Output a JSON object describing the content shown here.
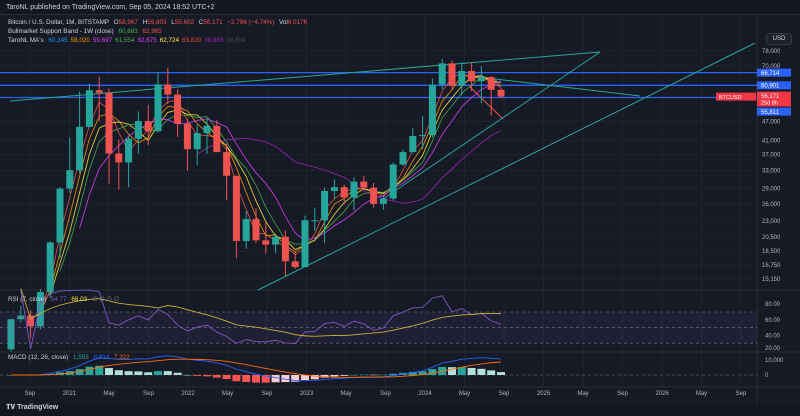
{
  "header": {
    "publisher": "TaroNL published on TradingView.com, Sep 05, 2024 18:52 UTC+2"
  },
  "legend": {
    "symbol": "Bitcoin / U.S. Dollar, 1M, BITSTAMP",
    "o_label": "O",
    "o": "58,967",
    "h_label": "H",
    "h": "59,803",
    "l_label": "L",
    "l": "55,602",
    "c_label": "C",
    "c": "56,171",
    "change": "−2,796 (−4.74%)",
    "vol_label": "Vol",
    "vol": "8.017K",
    "band_title": "Bullmarket Support Band - 1W (close)",
    "band_v1": "60,683",
    "band_v2": "62,965",
    "ma_title": "TaroNL MA's",
    "ma_values": [
      {
        "v": "60,145",
        "color": "#2196f3"
      },
      {
        "v": "58,020",
        "color": "#ff9800"
      },
      {
        "v": "59,697",
        "color": "#e040fb"
      },
      {
        "v": "61,554",
        "color": "#4caf50"
      },
      {
        "v": "62,675",
        "color": "#e040fb"
      },
      {
        "v": "62,724",
        "color": "#ffeb3b"
      },
      {
        "v": "63,820",
        "color": "#f44336"
      },
      {
        "v": "38,883",
        "color": "#9c27b0"
      },
      {
        "v": "38,864",
        "color": "#434651"
      }
    ]
  },
  "currency_button": "USD",
  "price_axis": {
    "ticks": [
      78000,
      70000,
      47000,
      41000,
      37000,
      33000,
      29000,
      26000,
      23000,
      20500,
      18500,
      16750,
      15150
    ],
    "labels": [
      "78,000",
      "70,000",
      "47,000",
      "41,000",
      "37,000",
      "33,000",
      "29,000",
      "26,000",
      "23,000",
      "20,500",
      "18,500",
      "16,750",
      "15,150"
    ]
  },
  "levels": [
    {
      "price": 66714,
      "label": "66,714"
    },
    {
      "price": 60901,
      "label": "60,901"
    },
    {
      "price": 55811,
      "label": "55,811"
    }
  ],
  "last_price": {
    "symbol": "BTCUSD",
    "price": 56171,
    "label": "56,171",
    "countdown": "25d 8h"
  },
  "time_axis": [
    "Sep",
    "2021",
    "May",
    "Sep",
    "2022",
    "May",
    "Sep",
    "2023",
    "May",
    "Sep",
    "2024",
    "May",
    "Sep",
    "2025",
    "May",
    "Sep",
    "2026",
    "May",
    "Sep"
  ],
  "candles": [
    [
      9140,
      11400,
      9000,
      11350
    ],
    [
      11350,
      12470,
      11100,
      11650
    ],
    [
      11650,
      12080,
      9900,
      10780
    ],
    [
      10780,
      14100,
      10550,
      13800
    ],
    [
      13800,
      19900,
      13200,
      19700
    ],
    [
      19700,
      29300,
      17600,
      29000
    ],
    [
      29000,
      41900,
      28100,
      33100
    ],
    [
      33100,
      58300,
      32300,
      45200
    ],
    [
      45200,
      61700,
      45000,
      58800
    ],
    [
      58800,
      64800,
      47000,
      57700
    ],
    [
      57700,
      59500,
      30000,
      37300
    ],
    [
      37300,
      41300,
      28800,
      35000
    ],
    [
      35000,
      42400,
      29300,
      41500
    ],
    [
      41500,
      50500,
      37300,
      47100
    ],
    [
      47100,
      52900,
      39600,
      43800
    ],
    [
      43800,
      67000,
      43300,
      61300
    ],
    [
      61300,
      69000,
      53300,
      57000
    ],
    [
      57000,
      59100,
      42000,
      46200
    ],
    [
      46200,
      47900,
      33000,
      38500
    ],
    [
      38500,
      45800,
      34300,
      43200
    ],
    [
      43200,
      48200,
      37200,
      45500
    ],
    [
      45500,
      47400,
      37700,
      37700
    ],
    [
      37700,
      40000,
      26700,
      31800
    ],
    [
      31800,
      31900,
      17600,
      19900
    ],
    [
      19900,
      24700,
      18800,
      23300
    ],
    [
      23300,
      25200,
      19600,
      20000
    ],
    [
      20000,
      22800,
      18200,
      19400
    ],
    [
      19400,
      21000,
      18200,
      20500
    ],
    [
      20500,
      21500,
      15500,
      17200
    ],
    [
      17200,
      18400,
      16300,
      16500
    ],
    [
      16500,
      23900,
      16500,
      23100
    ],
    [
      23100,
      25300,
      21400,
      23100
    ],
    [
      23100,
      29200,
      19600,
      28500
    ],
    [
      28500,
      31000,
      26900,
      29300
    ],
    [
      29300,
      29800,
      25900,
      27200
    ],
    [
      27200,
      31400,
      24800,
      30500
    ],
    [
      30500,
      31800,
      28900,
      29200
    ],
    [
      29200,
      30200,
      25300,
      26000
    ],
    [
      26000,
      27500,
      24900,
      27000
    ],
    [
      27000,
      35000,
      26600,
      34500
    ],
    [
      34500,
      38400,
      34100,
      37700
    ],
    [
      37700,
      44700,
      37600,
      42300
    ],
    [
      42300,
      48900,
      38500,
      42600
    ],
    [
      42600,
      64000,
      41900,
      61200
    ],
    [
      61200,
      73800,
      59300,
      71300
    ],
    [
      71300,
      72800,
      59100,
      60700
    ],
    [
      60700,
      71900,
      56600,
      67500
    ],
    [
      67500,
      71900,
      58400,
      62700
    ],
    [
      62700,
      70000,
      53500,
      64600
    ],
    [
      64600,
      65100,
      49000,
      59000
    ],
    [
      58967,
      59803,
      55602,
      56171
    ]
  ],
  "rsi": {
    "title": "RSI (7, close)",
    "v1": "54.77",
    "v2": "68.03",
    "zeros": "∅ ∅ ∅ ∅",
    "ticks": [
      "80.00",
      "60.00",
      "40.00",
      "20.00"
    ]
  },
  "macd": {
    "title": "MACD (12, 26, close)",
    "hist": "1,593",
    "macd": "8,914",
    "signal": "7,322",
    "ticks": [
      "10,000",
      "0"
    ]
  },
  "colors": {
    "up": "#26a69a",
    "down": "#ef5350",
    "level": "#2962ff",
    "trend": "#26a69a"
  },
  "footer": {
    "brand": "TradingView"
  }
}
